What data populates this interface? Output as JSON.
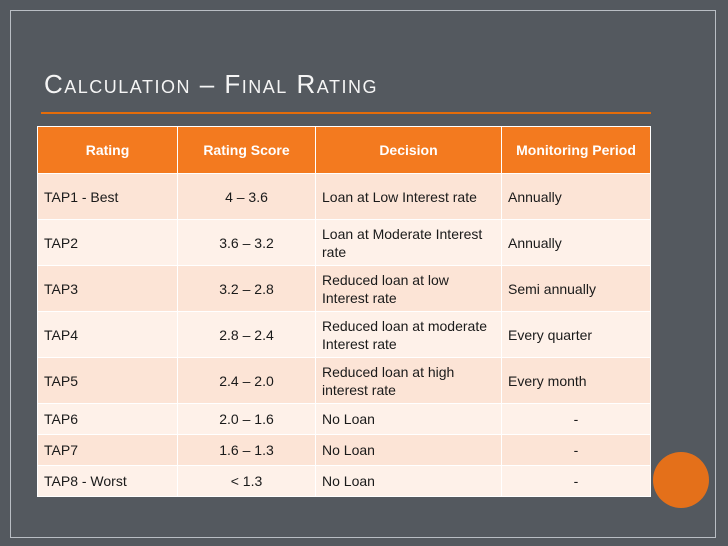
{
  "slide": {
    "title": "Calculation – Final Rating",
    "accent_color": "#e46c0a",
    "background_color": "#54595f"
  },
  "table": {
    "headers": [
      "Rating",
      "Rating Score",
      "Decision",
      "Monitoring Period"
    ],
    "rows": [
      {
        "rating": "TAP1 - Best",
        "score": "4 – 3.6",
        "decision": "Loan at Low Interest rate",
        "period": "Annually"
      },
      {
        "rating": "TAP2",
        "score": "3.6 – 3.2",
        "decision": "Loan at Moderate Interest rate",
        "period": "Annually"
      },
      {
        "rating": "TAP3",
        "score": "3.2 – 2.8",
        "decision": "Reduced loan at low Interest rate",
        "period": "Semi annually"
      },
      {
        "rating": "TAP4",
        "score": "2.8 – 2.4",
        "decision": "Reduced loan at moderate Interest rate",
        "period": "Every quarter"
      },
      {
        "rating": "TAP5",
        "score": "2.4 – 2.0",
        "decision": "Reduced loan at high interest rate",
        "period": "Every month"
      },
      {
        "rating": "TAP6",
        "score": "2.0 – 1.6",
        "decision": "No Loan",
        "period": "-"
      },
      {
        "rating": "TAP7",
        "score": "1.6 – 1.3",
        "decision": "No Loan",
        "period": "-"
      },
      {
        "rating": "TAP8 - Worst",
        "score": "< 1.3",
        "decision": "No Loan",
        "period": "-"
      }
    ]
  }
}
